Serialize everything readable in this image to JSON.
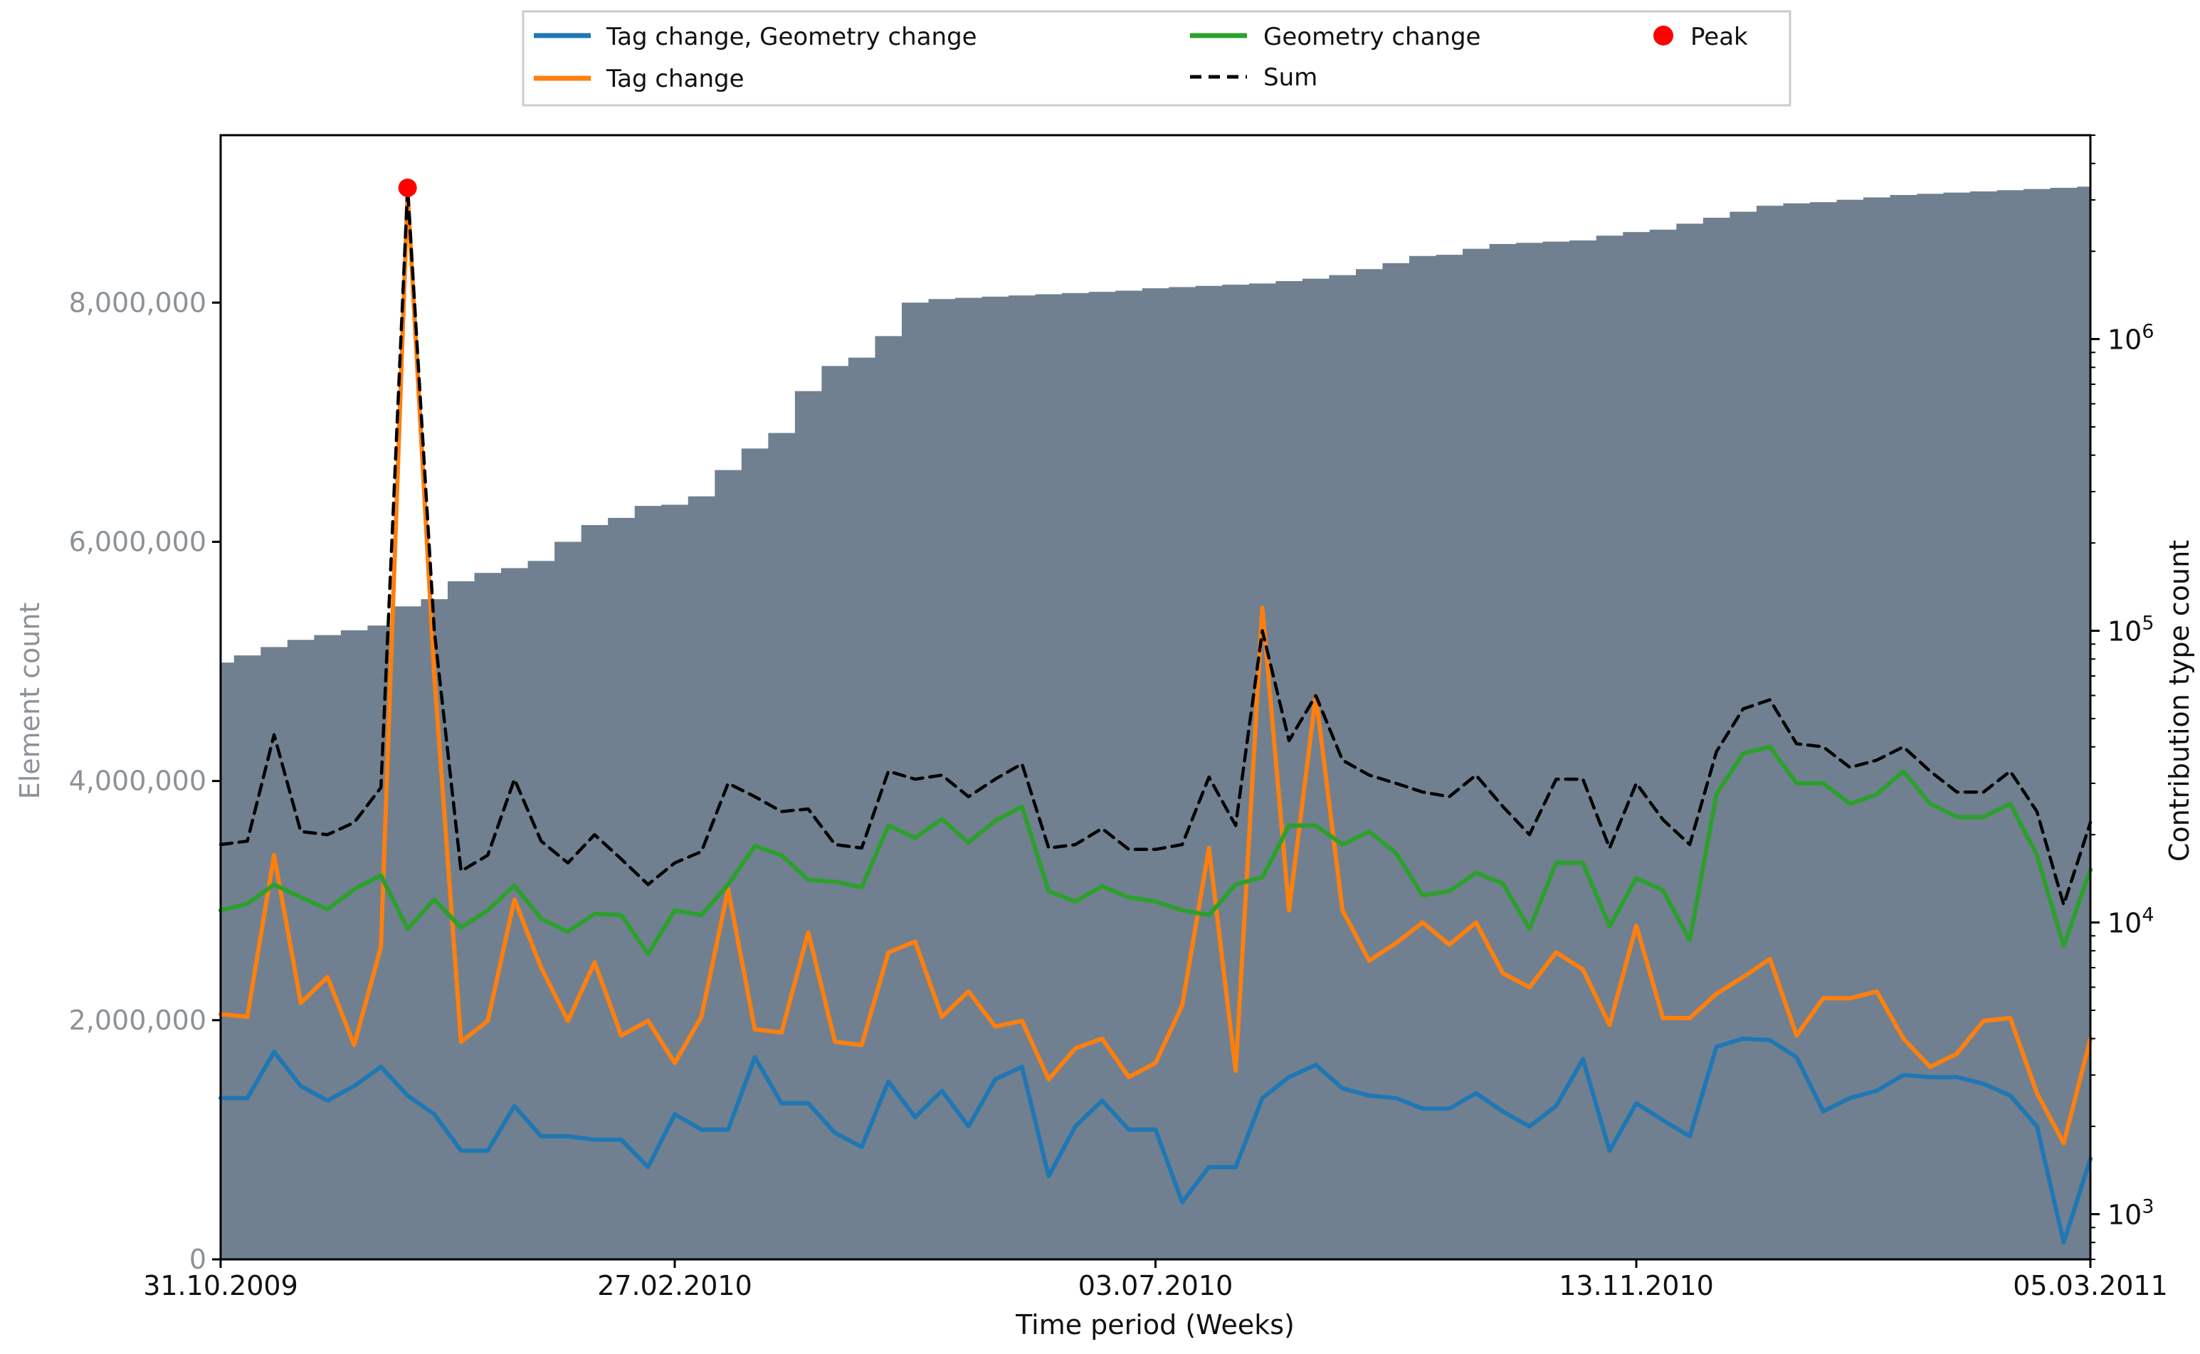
{
  "chart_data": {
    "type": "line",
    "title": "",
    "xlabel": "Time period (Weeks)",
    "ylabel_left": "Element count",
    "ylabel_right": "Contribution type count",
    "x_tick_labels": [
      "31.10.2009",
      "27.02.2010",
      "03.07.2010",
      "13.11.2010",
      "05.03.2011"
    ],
    "x_tick_index": [
      0,
      17,
      35,
      53,
      70
    ],
    "ylim_left": [
      0,
      9400000
    ],
    "y_ticks_left": [
      {
        "value": 0,
        "label": "0"
      },
      {
        "value": 2000000,
        "label": "2,000,000"
      },
      {
        "value": 4000000,
        "label": "4,000,000"
      },
      {
        "value": 6000000,
        "label": "6,000,000"
      },
      {
        "value": 8000000,
        "label": "8,000,000"
      }
    ],
    "yscale_right": "log",
    "ylim_right": [
      700,
      5000000
    ],
    "y_ticks_right": [
      {
        "value": 1000,
        "base": "10",
        "exp": "3"
      },
      {
        "value": 10000,
        "base": "10",
        "exp": "4"
      },
      {
        "value": 100000,
        "base": "10",
        "exp": "5"
      },
      {
        "value": 1000000,
        "base": "10",
        "exp": "6"
      }
    ],
    "grid": false,
    "legend_position": "top-center",
    "colors": {
      "bars": "#708090",
      "tag_geometry": "#1f77b4",
      "tag": "#ff7f0e",
      "geometry": "#2ca02c",
      "sum": "#000000",
      "peak": "#ff0000",
      "left_axis_text": "#8c9298"
    },
    "bar_series": {
      "name": "Element count",
      "axis": "left",
      "values": [
        4990000,
        5050000,
        5120000,
        5180000,
        5220000,
        5260000,
        5300000,
        5460000,
        5520000,
        5670000,
        5740000,
        5780000,
        5840000,
        6000000,
        6140000,
        6200000,
        6300000,
        6310000,
        6380000,
        6600000,
        6780000,
        6910000,
        7260000,
        7470000,
        7540000,
        7720000,
        8000000,
        8030000,
        8040000,
        8050000,
        8060000,
        8070000,
        8080000,
        8090000,
        8100000,
        8120000,
        8130000,
        8140000,
        8150000,
        8160000,
        8180000,
        8200000,
        8230000,
        8280000,
        8330000,
        8390000,
        8400000,
        8450000,
        8490000,
        8500000,
        8510000,
        8520000,
        8560000,
        8590000,
        8610000,
        8660000,
        8710000,
        8760000,
        8810000,
        8830000,
        8840000,
        8860000,
        8880000,
        8900000,
        8910000,
        8920000,
        8930000,
        8940000,
        8950000,
        8960000,
        8970000
      ]
    },
    "series": [
      {
        "name": "Tag change, Geometry change",
        "axis": "right",
        "values": [
          2500,
          2500,
          3600,
          2750,
          2450,
          2750,
          3200,
          2550,
          2200,
          1650,
          1650,
          2350,
          1850,
          1850,
          1800,
          1800,
          1450,
          2200,
          1950,
          1950,
          3450,
          2400,
          2400,
          1900,
          1700,
          2850,
          2150,
          2650,
          2000,
          2900,
          3200,
          1350,
          2000,
          2450,
          1950,
          1950,
          1100,
          1450,
          1450,
          2500,
          2950,
          3250,
          2700,
          2550,
          2500,
          2300,
          2300,
          2600,
          2250,
          2000,
          2350,
          3400,
          1650,
          2400,
          2100,
          1850,
          3750,
          4000,
          3950,
          3450,
          2250,
          2500,
          2650,
          3000,
          2950,
          2950,
          2800,
          2550,
          2000,
          800,
          1550
        ]
      },
      {
        "name": "Tag change",
        "axis": "right",
        "values": [
          4850,
          4750,
          17000,
          5300,
          6500,
          3800,
          8250,
          3200000,
          70000,
          3900,
          4600,
          12000,
          7000,
          4600,
          7300,
          4100,
          4600,
          3300,
          4750,
          13000,
          4300,
          4200,
          9250,
          3900,
          3800,
          7900,
          8600,
          4750,
          5800,
          4400,
          4600,
          2900,
          3700,
          4000,
          2950,
          3300,
          5200,
          18000,
          3100,
          120000,
          11000,
          60000,
          11000,
          7400,
          8500,
          10000,
          8400,
          10000,
          6700,
          6000,
          7900,
          6900,
          4450,
          9750,
          4700,
          4700,
          5700,
          6500,
          7500,
          4100,
          5500,
          5500,
          5800,
          4000,
          3200,
          3550,
          4600,
          4700,
          2600,
          1750,
          4000
        ]
      },
      {
        "name": "Geometry change",
        "axis": "right",
        "values": [
          11000,
          11600,
          13500,
          12200,
          11100,
          13000,
          14500,
          9500,
          12000,
          9600,
          11000,
          13400,
          10300,
          9300,
          10700,
          10600,
          7800,
          11000,
          10600,
          13500,
          18300,
          17000,
          14000,
          13800,
          13200,
          21500,
          19500,
          22600,
          18800,
          22300,
          25000,
          12800,
          11800,
          13300,
          12200,
          11800,
          11000,
          10600,
          13500,
          14300,
          21500,
          21500,
          18500,
          20500,
          17300,
          12400,
          12800,
          14800,
          13600,
          9500,
          16000,
          16000,
          9700,
          14200,
          12900,
          8700,
          27500,
          38000,
          40000,
          30000,
          30000,
          25500,
          27500,
          33000,
          25500,
          23000,
          23000,
          25500,
          17000,
          8300,
          15200
        ]
      },
      {
        "name": "Sum",
        "axis": "right",
        "values": [
          18500,
          19000,
          44000,
          20500,
          20000,
          22000,
          29000,
          3300000,
          100000,
          15000,
          17000,
          31000,
          19000,
          16000,
          20000,
          16500,
          13500,
          16000,
          17500,
          30000,
          27000,
          24000,
          24500,
          18500,
          18000,
          33000,
          31000,
          32000,
          27000,
          31000,
          35000,
          18000,
          18500,
          21000,
          17800,
          17800,
          18500,
          31500,
          21500,
          100000,
          42000,
          60000,
          36000,
          32000,
          30000,
          28000,
          27000,
          32000,
          25000,
          20000,
          31000,
          31000,
          18000,
          30000,
          22500,
          18500,
          38500,
          54000,
          58000,
          41000,
          40000,
          34000,
          36000,
          40000,
          33000,
          28000,
          28000,
          33000,
          24000,
          11500,
          22000
        ]
      }
    ],
    "peak": {
      "name": "Peak",
      "index": 7,
      "value": 3300000,
      "axis": "right"
    },
    "legend": [
      {
        "label": "Tag change, Geometry change",
        "kind": "line",
        "color": "#1f77b4"
      },
      {
        "label": "Tag change",
        "kind": "line",
        "color": "#ff7f0e"
      },
      {
        "label": "Geometry change",
        "kind": "line",
        "color": "#2ca02c"
      },
      {
        "label": "Sum",
        "kind": "dashed",
        "color": "#000000"
      },
      {
        "label": "Peak",
        "kind": "dot",
        "color": "#ff0000"
      }
    ]
  }
}
